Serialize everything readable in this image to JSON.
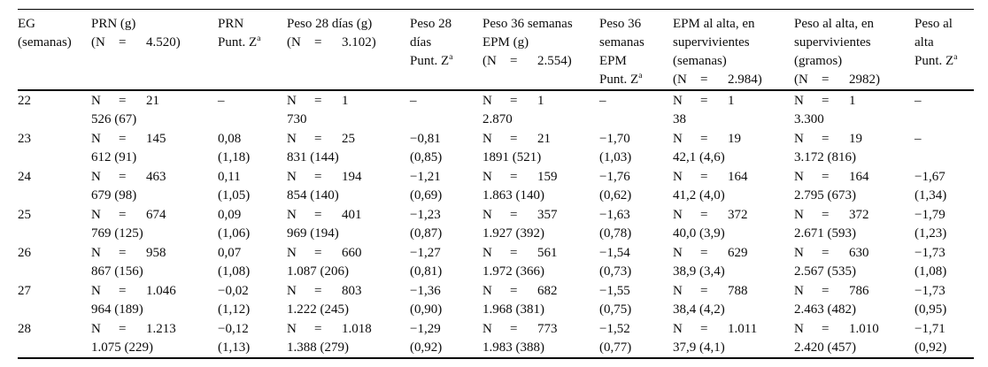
{
  "table": {
    "dash_char": "–",
    "n_open": "(N",
    "n_label": "N",
    "eq": "=",
    "sup_marker": "^a",
    "sup_char": "a",
    "headers": [
      {
        "lines": [
          "EG",
          "(semanas)"
        ]
      },
      {
        "lines": [
          "PRN (g)"
        ],
        "n": "4.520)"
      },
      {
        "lines": [
          "PRN",
          "Punt. Z^a"
        ]
      },
      {
        "lines": [
          "Peso 28 días (g)"
        ],
        "n": "3.102)"
      },
      {
        "lines": [
          "Peso 28",
          "días",
          "Punt. Z^a"
        ]
      },
      {
        "lines": [
          "Peso 36 semanas",
          "EPM (g)"
        ],
        "n": "2.554)"
      },
      {
        "lines": [
          "Peso 36",
          "semanas",
          "EPM",
          "Punt. Z^a"
        ]
      },
      {
        "lines": [
          "EPM al alta, en",
          "supervivientes",
          "(semanas)"
        ],
        "n": "2.984)"
      },
      {
        "lines": [
          "Peso al alta, en",
          "supervivientes",
          "(gramos)"
        ],
        "n": "2982)"
      },
      {
        "lines": [
          "Peso al",
          "alta",
          "Punt. Z^a"
        ]
      }
    ],
    "rows": [
      {
        "eg": "22",
        "cells": [
          {
            "n": "21",
            "stat": "526 (67)"
          },
          {
            "dash": true
          },
          {
            "n": "1",
            "stat": "730"
          },
          {
            "dash": true
          },
          {
            "n": "1",
            "stat": "2.870"
          },
          {
            "dash": true
          },
          {
            "n": "1",
            "stat": "38"
          },
          {
            "n": "1",
            "stat": "3.300"
          },
          {
            "dash": true
          }
        ]
      },
      {
        "eg": "23",
        "cells": [
          {
            "n": "145",
            "stat": "612 (91)"
          },
          {
            "z": "0,08",
            "sd": "(1,18)"
          },
          {
            "n": "25",
            "stat": "831 (144)"
          },
          {
            "z": "−0,81",
            "sd": "(0,85)"
          },
          {
            "n": "21",
            "stat": "1891 (521)"
          },
          {
            "z": "−1,70",
            "sd": "(1,03)"
          },
          {
            "n": "19",
            "stat": "42,1 (4,6)"
          },
          {
            "n": "19",
            "stat": "3.172 (816)"
          },
          {
            "dash": true
          }
        ]
      },
      {
        "eg": "24",
        "cells": [
          {
            "n": "463",
            "stat": "679 (98)"
          },
          {
            "z": "0,11",
            "sd": "(1,05)"
          },
          {
            "n": "194",
            "stat": "854 (140)"
          },
          {
            "z": "−1,21",
            "sd": "(0,69)"
          },
          {
            "n": "159",
            "stat": "1.863 (140)"
          },
          {
            "z": "−1,76",
            "sd": "(0,62)"
          },
          {
            "n": "164",
            "stat": "41,2 (4,0)"
          },
          {
            "n": "164",
            "stat": "2.795 (673)"
          },
          {
            "z": "−1,67",
            "sd": "(1,34)"
          }
        ]
      },
      {
        "eg": "25",
        "cells": [
          {
            "n": "674",
            "stat": "769 (125)"
          },
          {
            "z": "0,09",
            "sd": "(1,06)"
          },
          {
            "n": "401",
            "stat": "969 (194)"
          },
          {
            "z": "−1,23",
            "sd": "(0,87)"
          },
          {
            "n": "357",
            "stat": "1.927 (392)"
          },
          {
            "z": "−1,63",
            "sd": "(0,78)"
          },
          {
            "n": "372",
            "stat": "40,0 (3,9)"
          },
          {
            "n": "372",
            "stat": "2.671 (593)"
          },
          {
            "z": "−1,79",
            "sd": "(1,23)"
          }
        ]
      },
      {
        "eg": "26",
        "cells": [
          {
            "n": "958",
            "stat": "867 (156)"
          },
          {
            "z": "0,07",
            "sd": "(1,08)"
          },
          {
            "n": "660",
            "stat": "1.087 (206)"
          },
          {
            "z": "−1,27",
            "sd": "(0,81)"
          },
          {
            "n": "561",
            "stat": "1.972 (366)"
          },
          {
            "z": "−1,54",
            "sd": "(0,73)"
          },
          {
            "n": "629",
            "stat": "38,9 (3,4)"
          },
          {
            "n": "630",
            "stat": "2.567 (535)"
          },
          {
            "z": "−1,73",
            "sd": "(1,08)"
          }
        ]
      },
      {
        "eg": "27",
        "cells": [
          {
            "n": "1.046",
            "stat": "964 (189)"
          },
          {
            "z": "−0,02",
            "sd": "(1,12)"
          },
          {
            "n": "803",
            "stat": "1.222 (245)"
          },
          {
            "z": "−1,36",
            "sd": "(0,90)"
          },
          {
            "n": "682",
            "stat": "1.968 (381)"
          },
          {
            "z": "−1,55",
            "sd": "(0,75)"
          },
          {
            "n": "788",
            "stat": "38,4 (4,2)"
          },
          {
            "n": "786",
            "stat": "2.463 (482)"
          },
          {
            "z": "−1,73",
            "sd": "(0,95)"
          }
        ]
      },
      {
        "eg": "28",
        "cells": [
          {
            "n": "1.213",
            "stat": "1.075 (229)"
          },
          {
            "z": "−0,12",
            "sd": "(1,13)"
          },
          {
            "n": "1.018",
            "stat": "1.388 (279)"
          },
          {
            "z": "−1,29",
            "sd": "(0,92)"
          },
          {
            "n": "773",
            "stat": "1.983 (388)"
          },
          {
            "z": "−1,52",
            "sd": "(0,77)"
          },
          {
            "n": "1.011",
            "stat": "37,9 (4,1)"
          },
          {
            "n": "1.010",
            "stat": "2.420 (457)"
          },
          {
            "z": "−1,71",
            "sd": "(0,92)"
          }
        ]
      }
    ]
  }
}
